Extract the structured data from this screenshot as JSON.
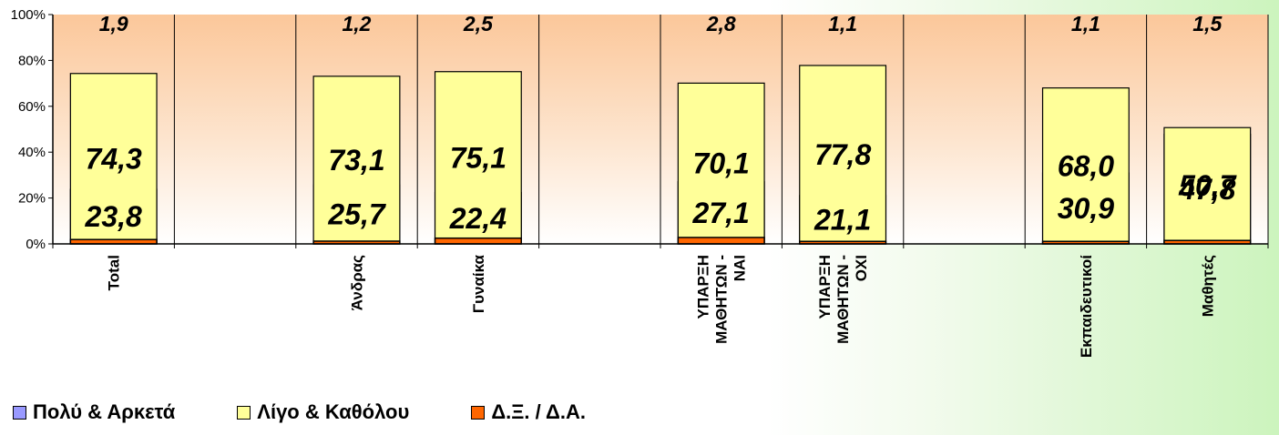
{
  "chart_data": {
    "type": "bar",
    "stacked": true,
    "percent": true,
    "categories": [
      "Total",
      "",
      "Άνδρας",
      "Γυναίκα",
      "",
      "ΥΠΑΡΞΗ ΜΑΘΗΤΩΝ - ΝΑΙ",
      "ΥΠΑΡΞΗ ΜΑΘΗΤΩΝ - ΟΧΙ",
      "",
      "Εκπαιδευτικοί",
      "Μαθητές"
    ],
    "series": [
      {
        "name": "Πολύ & Αρκετά",
        "color": "#9999ff",
        "values": [
          23.8,
          null,
          25.7,
          22.4,
          null,
          27.1,
          21.1,
          null,
          30.9,
          47.8
        ],
        "labels": [
          "23,8",
          "",
          "25,7",
          "22,4",
          "",
          "27,1",
          "21,1",
          "",
          "30,9",
          "47,8"
        ]
      },
      {
        "name": "Λίγο & Καθόλου",
        "color": "#ffff99",
        "values": [
          74.3,
          null,
          73.1,
          75.1,
          null,
          70.1,
          77.8,
          null,
          68.0,
          50.7
        ],
        "labels": [
          "74,3",
          "",
          "73,1",
          "75,1",
          "",
          "70,1",
          "77,8",
          "",
          "68,0",
          "50,7"
        ]
      },
      {
        "name": "Δ.Ξ. / Δ.Α.",
        "color": "#ff6600",
        "values": [
          1.9,
          null,
          1.2,
          2.5,
          null,
          2.8,
          1.1,
          null,
          1.1,
          1.5
        ],
        "labels": [
          "1,9",
          "",
          "1,2",
          "2,5",
          "",
          "2,8",
          "1,1",
          "",
          "1,1",
          "1,5"
        ]
      }
    ],
    "yticks": [
      "0%",
      "20%",
      "40%",
      "60%",
      "80%",
      "100%"
    ],
    "ylim": [
      0,
      100
    ],
    "legend_position": "bottom",
    "grid": false,
    "plot_background": "gradient-orange"
  }
}
